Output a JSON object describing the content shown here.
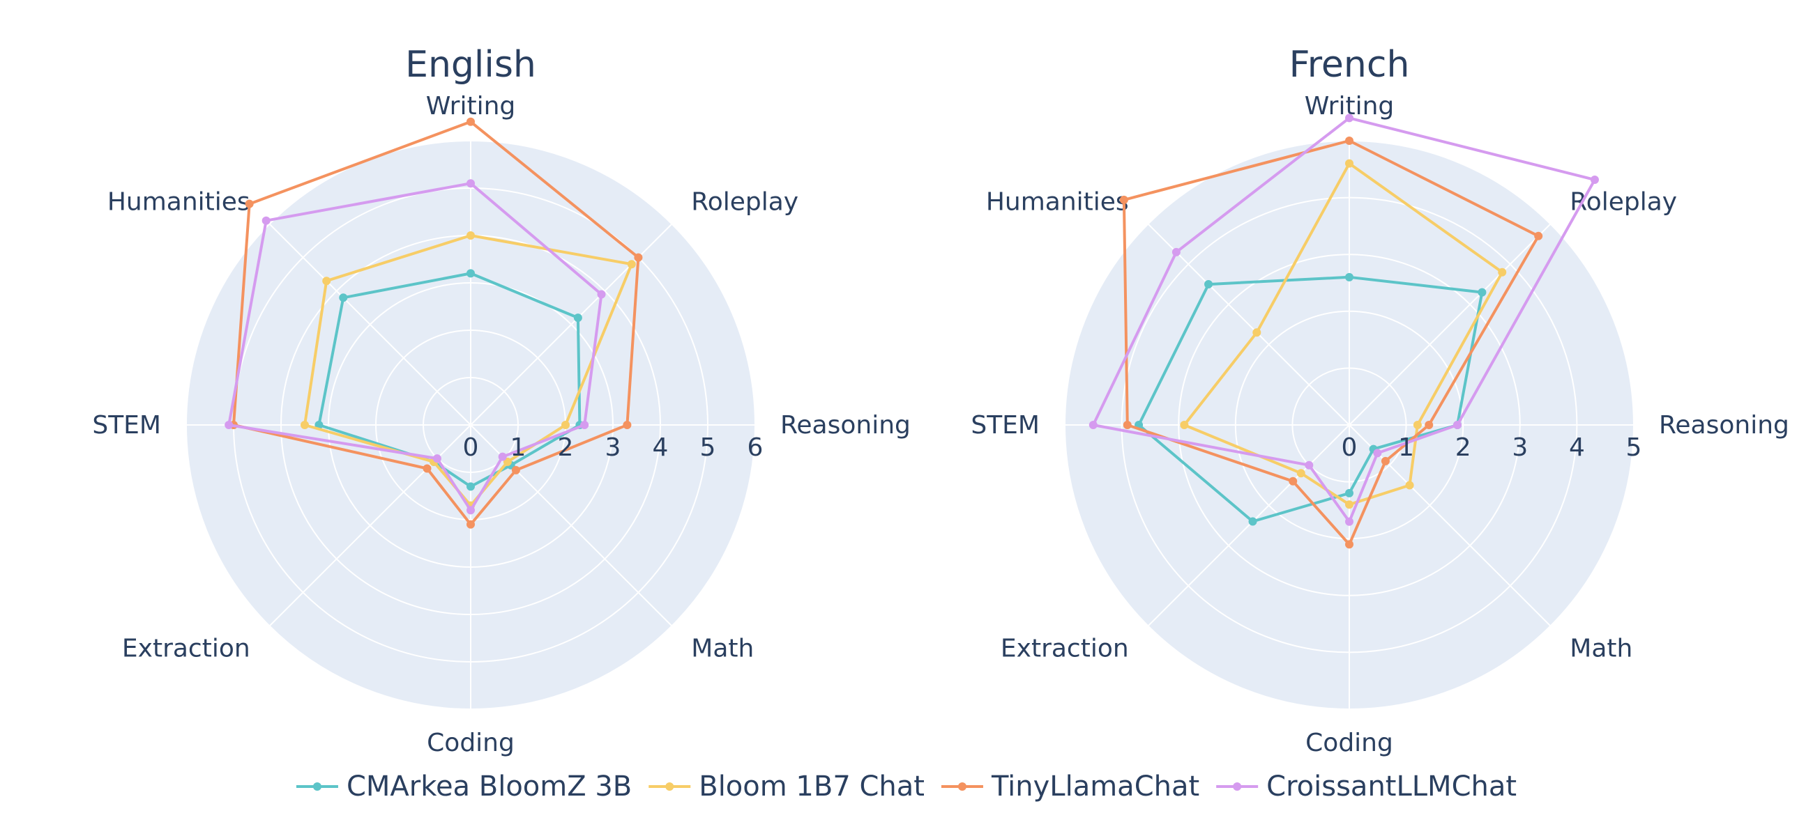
{
  "chart_data": [
    {
      "type": "radar",
      "title": "English",
      "axes": [
        "Writing",
        "Roleplay",
        "Reasoning",
        "Math",
        "Coding",
        "Extraction",
        "STEM",
        "Humanities"
      ],
      "rlim": [
        0,
        6
      ],
      "rticks": [
        0,
        1,
        2,
        3,
        4,
        5,
        6
      ],
      "grid": true,
      "series": [
        {
          "name": "CMArkea BloomZ 3B",
          "values": [
            3.2,
            3.2,
            2.3,
            1.2,
            1.3,
            1.1,
            3.2,
            3.8
          ]
        },
        {
          "name": "Bloom 1B7 Chat",
          "values": [
            4.0,
            4.8,
            2.0,
            1.1,
            1.7,
            1.1,
            3.5,
            4.3
          ]
        },
        {
          "name": "TinyLlamaChat",
          "values": [
            6.4,
            5.0,
            3.3,
            1.35,
            2.1,
            1.3,
            5.0,
            6.6
          ]
        },
        {
          "name": "CroissantLLMChat",
          "values": [
            5.1,
            3.9,
            2.4,
            0.95,
            1.8,
            1.0,
            5.1,
            6.1
          ]
        }
      ]
    },
    {
      "type": "radar",
      "title": "French",
      "axes": [
        "Writing",
        "Roleplay",
        "Reasoning",
        "Math",
        "Coding",
        "Extraction",
        "STEM",
        "Humanities"
      ],
      "rlim": [
        0,
        5
      ],
      "rticks": [
        0,
        1,
        2,
        3,
        4,
        5
      ],
      "grid": true,
      "series": [
        {
          "name": "CMArkea BloomZ 3B",
          "values": [
            2.6,
            3.3,
            1.9,
            0.6,
            1.2,
            2.4,
            3.7,
            3.5
          ]
        },
        {
          "name": "Bloom 1B7 Chat",
          "values": [
            4.6,
            3.8,
            1.2,
            1.5,
            1.4,
            1.2,
            2.9,
            2.3
          ]
        },
        {
          "name": "TinyLlamaChat",
          "values": [
            5.0,
            4.7,
            1.4,
            0.9,
            2.1,
            1.4,
            3.9,
            5.6
          ]
        },
        {
          "name": "CroissantLLMChat",
          "values": [
            5.4,
            6.1,
            1.9,
            0.7,
            1.7,
            1.0,
            4.5,
            4.3
          ]
        }
      ]
    }
  ],
  "legend": {
    "placement": "bottom-center",
    "items": [
      {
        "name": "CMArkea BloomZ 3B",
        "color": "#5cc4c8"
      },
      {
        "name": "Bloom 1B7 Chat",
        "color": "#f7cd67"
      },
      {
        "name": "TinyLlamaChat",
        "color": "#f4925f"
      },
      {
        "name": "CroissantLLMChat",
        "color": "#d59bef"
      }
    ]
  },
  "colors": {
    "polar_background": "#e5ecf6",
    "grid": "#ffffff",
    "text": "#2a3f5f"
  }
}
